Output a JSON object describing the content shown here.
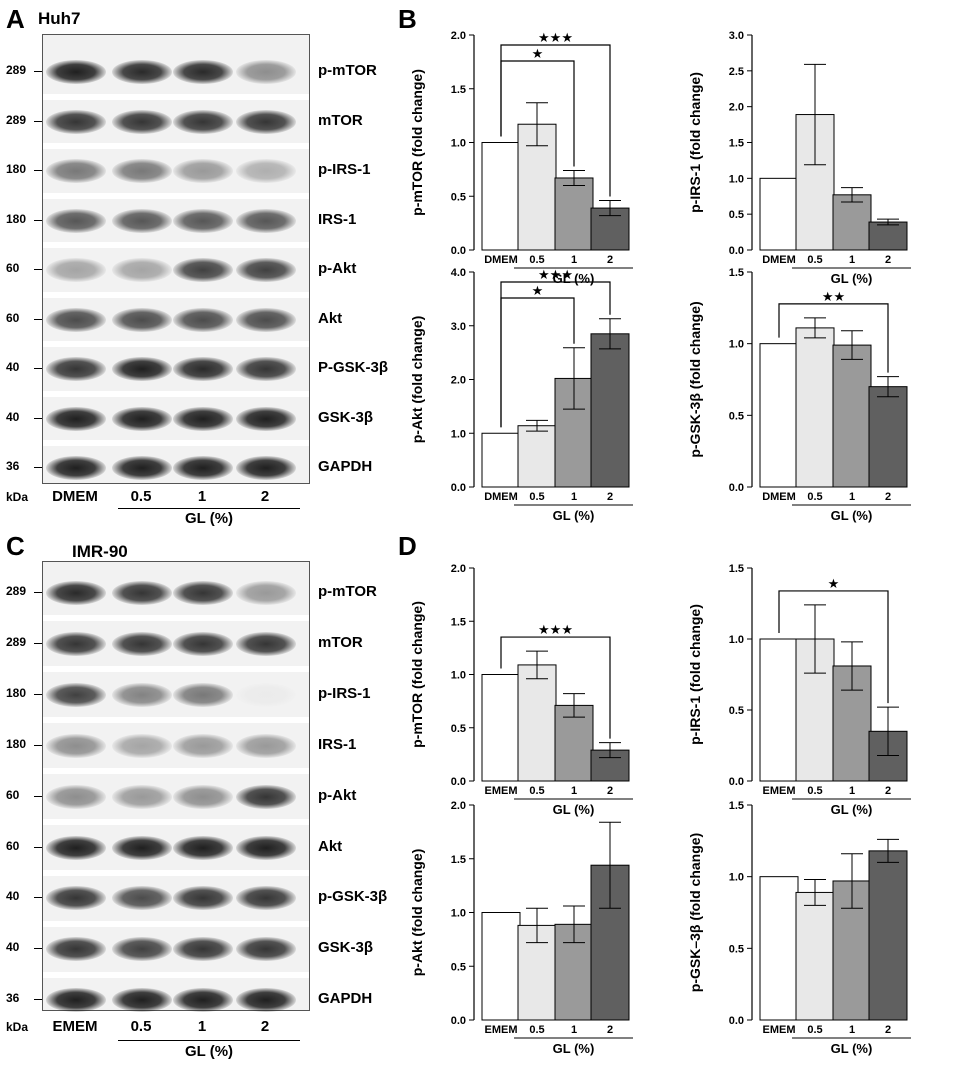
{
  "panels": {
    "A": {
      "letter": "A",
      "cell_line": "Huh7"
    },
    "B": {
      "letter": "B"
    },
    "C": {
      "letter": "C",
      "cell_line": "IMR-90"
    },
    "D": {
      "letter": "D"
    }
  },
  "blots": [
    {
      "id": "A",
      "kda_unit": "kDa",
      "lanes": [
        "DMEM",
        "0.5",
        "1",
        "2"
      ],
      "group_label": "GL (%)",
      "rows": [
        {
          "target": "p-mTOR",
          "kda": "289",
          "intensity": [
            0.95,
            0.9,
            0.9,
            0.45
          ]
        },
        {
          "target": "mTOR",
          "kda": "289",
          "intensity": [
            0.85,
            0.85,
            0.85,
            0.85
          ]
        },
        {
          "target": "p-IRS-1",
          "kda": "180",
          "intensity": [
            0.55,
            0.55,
            0.4,
            0.3
          ]
        },
        {
          "target": "IRS-1",
          "kda": "180",
          "intensity": [
            0.7,
            0.7,
            0.7,
            0.7
          ]
        },
        {
          "target": "p-Akt",
          "kda": "60",
          "intensity": [
            0.35,
            0.35,
            0.8,
            0.8
          ]
        },
        {
          "target": "Akt",
          "kda": "60",
          "intensity": [
            0.75,
            0.75,
            0.75,
            0.75
          ]
        },
        {
          "target": "P-GSK-3β",
          "kda": "40",
          "intensity": [
            0.85,
            0.95,
            0.9,
            0.85
          ]
        },
        {
          "target": "GSK-3β",
          "kda": "40",
          "intensity": [
            0.95,
            0.95,
            0.95,
            0.95
          ]
        },
        {
          "target": "GAPDH",
          "kda": "36",
          "intensity": [
            0.95,
            0.95,
            0.95,
            0.95
          ]
        }
      ]
    },
    {
      "id": "C",
      "kda_unit": "kDa",
      "lanes": [
        "EMEM",
        "0.5",
        "1",
        "2"
      ],
      "group_label": "GL (%)",
      "rows": [
        {
          "target": "p-mTOR",
          "kda": "289",
          "intensity": [
            0.9,
            0.85,
            0.85,
            0.4
          ]
        },
        {
          "target": "mTOR",
          "kda": "289",
          "intensity": [
            0.85,
            0.85,
            0.85,
            0.85
          ]
        },
        {
          "target": "p-IRS-1",
          "kda": "180",
          "intensity": [
            0.8,
            0.5,
            0.55,
            0.03
          ]
        },
        {
          "target": "IRS-1",
          "kda": "180",
          "intensity": [
            0.45,
            0.35,
            0.4,
            0.4
          ]
        },
        {
          "target": "p-Akt",
          "kda": "60",
          "intensity": [
            0.45,
            0.4,
            0.45,
            0.85
          ]
        },
        {
          "target": "Akt",
          "kda": "60",
          "intensity": [
            0.95,
            0.95,
            0.95,
            0.95
          ]
        },
        {
          "target": "p-GSK-3β",
          "kda": "40",
          "intensity": [
            0.85,
            0.75,
            0.85,
            0.85
          ]
        },
        {
          "target": "GSK-3β",
          "kda": "40",
          "intensity": [
            0.85,
            0.8,
            0.85,
            0.85
          ]
        },
        {
          "target": "GAPDH",
          "kda": "36",
          "intensity": [
            0.95,
            0.95,
            0.95,
            0.95
          ]
        }
      ]
    }
  ],
  "chart_data": [
    {
      "type": "bar",
      "panel": "B",
      "categories": [
        "DMEM",
        "0.5",
        "1",
        "2"
      ],
      "group_label": "GL (%)",
      "values": [
        1.0,
        1.17,
        0.67,
        0.39
      ],
      "errors": [
        0,
        0.2,
        0.07,
        0.07
      ],
      "ylabel": "p-mTOR (fold change)",
      "ylim": [
        0,
        2.0
      ],
      "yticks": [
        "0.0",
        "0.5",
        "1.0",
        "1.5",
        "2.0"
      ],
      "significance": [
        {
          "to": 2,
          "label": "★"
        },
        {
          "to": 3,
          "label": "★★★"
        }
      ]
    },
    {
      "type": "bar",
      "panel": "B",
      "categories": [
        "DMEM",
        "0.5",
        "1",
        "2"
      ],
      "group_label": "GL (%)",
      "values": [
        1.0,
        1.89,
        0.77,
        0.39
      ],
      "errors": [
        0,
        0.7,
        0.1,
        0.04
      ],
      "ylabel": "p-IRS-1 (fold change)",
      "ylim": [
        0,
        3.0
      ],
      "yticks": [
        "0.0",
        "0.5",
        "1.0",
        "1.5",
        "2.0",
        "2.5",
        "3.0"
      ],
      "significance": []
    },
    {
      "type": "bar",
      "panel": "B",
      "categories": [
        "DMEM",
        "0.5",
        "1",
        "2"
      ],
      "group_label": "GL (%)",
      "values": [
        1.0,
        1.14,
        2.02,
        2.85
      ],
      "errors": [
        0,
        0.1,
        0.57,
        0.28
      ],
      "ylabel": "p-Akt (fold change)",
      "ylim": [
        0,
        4.0
      ],
      "yticks": [
        "0.0",
        "1.0",
        "2.0",
        "3.0",
        "4.0"
      ],
      "significance": [
        {
          "to": 2,
          "label": "★"
        },
        {
          "to": 3,
          "label": "★★★"
        }
      ]
    },
    {
      "type": "bar",
      "panel": "B",
      "categories": [
        "DMEM",
        "0.5",
        "1",
        "2"
      ],
      "group_label": "GL (%)",
      "values": [
        1.0,
        1.11,
        0.99,
        0.7
      ],
      "errors": [
        0,
        0.07,
        0.1,
        0.07
      ],
      "ylabel": "p-GSK-3β (fold change)",
      "ylim": [
        0,
        1.5
      ],
      "yticks": [
        "0.0",
        "0.5",
        "1.0",
        "1.5"
      ],
      "significance": [
        {
          "to": 3,
          "label": "★★"
        }
      ]
    },
    {
      "type": "bar",
      "panel": "D",
      "categories": [
        "EMEM",
        "0.5",
        "1",
        "2"
      ],
      "group_label": "GL (%)",
      "values": [
        1.0,
        1.09,
        0.71,
        0.29
      ],
      "errors": [
        0,
        0.13,
        0.11,
        0.07
      ],
      "ylabel": "p-mTOR (fold change)",
      "ylim": [
        0,
        2.0
      ],
      "yticks": [
        "0.0",
        "0.5",
        "1.0",
        "1.5",
        "2.0"
      ],
      "significance": [
        {
          "to": 3,
          "label": "★★★"
        }
      ]
    },
    {
      "type": "bar",
      "panel": "D",
      "categories": [
        "EMEM",
        "0.5",
        "1",
        "2"
      ],
      "group_label": "GL (%)",
      "values": [
        1.0,
        1.0,
        0.81,
        0.35
      ],
      "errors": [
        0,
        0.24,
        0.17,
        0.17
      ],
      "ylabel": "p-IRS-1 (fold change)",
      "ylim": [
        0,
        1.5
      ],
      "yticks": [
        "0.0",
        "0.5",
        "1.0",
        "1.5"
      ],
      "significance": [
        {
          "to": 3,
          "label": "★"
        }
      ]
    },
    {
      "type": "bar",
      "panel": "D",
      "categories": [
        "EMEM",
        "0.5",
        "1",
        "2"
      ],
      "group_label": "GL (%)",
      "values": [
        1.0,
        0.88,
        0.89,
        1.44
      ],
      "errors": [
        0,
        0.16,
        0.17,
        0.4
      ],
      "ylabel": "p-Akt (fold change)",
      "ylim": [
        0,
        2.0
      ],
      "yticks": [
        "0.0",
        "0.5",
        "1.0",
        "1.5",
        "2.0"
      ],
      "significance": []
    },
    {
      "type": "bar",
      "panel": "D",
      "categories": [
        "EMEM",
        "0.5",
        "1",
        "2"
      ],
      "group_label": "GL (%)",
      "values": [
        1.0,
        0.89,
        0.97,
        1.18
      ],
      "errors": [
        0,
        0.09,
        0.19,
        0.08
      ],
      "ylabel": "p-GSK–3β (fold change)",
      "ylim": [
        0,
        1.5
      ],
      "yticks": [
        "0.0",
        "0.5",
        "1.0",
        "1.5"
      ],
      "significance": []
    }
  ],
  "colors": {
    "bar_fills": [
      "#ffffff",
      "#e8e8e8",
      "#9a9a9a",
      "#606060"
    ],
    "axis": "#000000",
    "blot_background": "#f2f2f2",
    "band": "#1a1a1a"
  }
}
